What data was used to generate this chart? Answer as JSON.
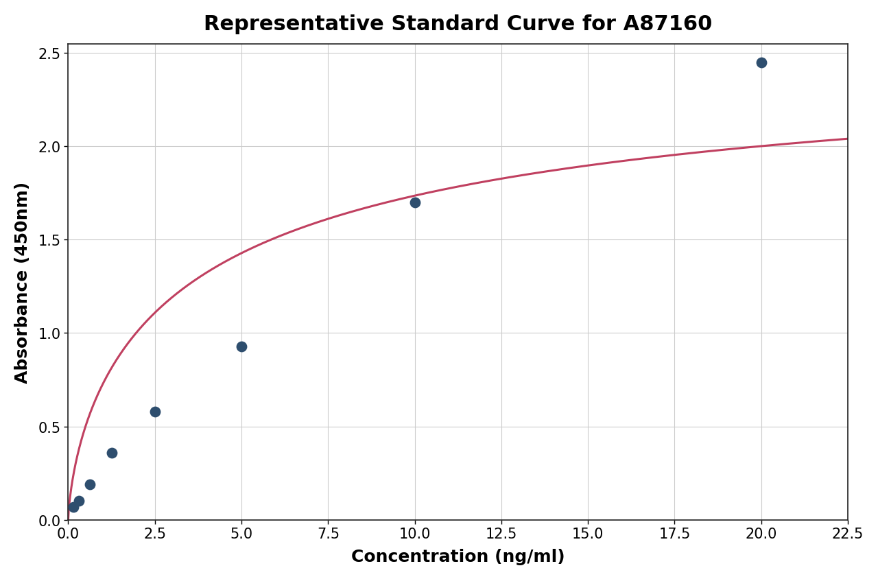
{
  "title": "Representative Standard Curve for A87160",
  "xlabel": "Concentration (ng/ml)",
  "ylabel": "Absorbance (450nm)",
  "xlim": [
    0,
    22.5
  ],
  "ylim": [
    0,
    2.55
  ],
  "xticks": [
    0.0,
    2.5,
    5.0,
    7.5,
    10.0,
    12.5,
    15.0,
    17.5,
    20.0,
    22.5
  ],
  "yticks": [
    0.0,
    0.5,
    1.0,
    1.5,
    2.0,
    2.5
  ],
  "scatter_x": [
    0.156,
    0.313,
    0.625,
    1.25,
    2.5,
    5.0,
    10.0,
    20.0
  ],
  "scatter_y": [
    0.068,
    0.1,
    0.19,
    0.36,
    0.58,
    0.93,
    1.7,
    2.45
  ],
  "scatter_color": "#2e4e6e",
  "scatter_size": 130,
  "curve_color": "#c04060",
  "curve_linewidth": 2.2,
  "title_fontsize": 22,
  "label_fontsize": 18,
  "tick_fontsize": 15,
  "title_fontweight": "bold",
  "label_fontweight": "bold",
  "background_color": "#ffffff",
  "grid_color": "#cccccc",
  "grid_linewidth": 0.8,
  "figure_width": 12.8,
  "figure_height": 8.45,
  "figure_dpi": 100
}
